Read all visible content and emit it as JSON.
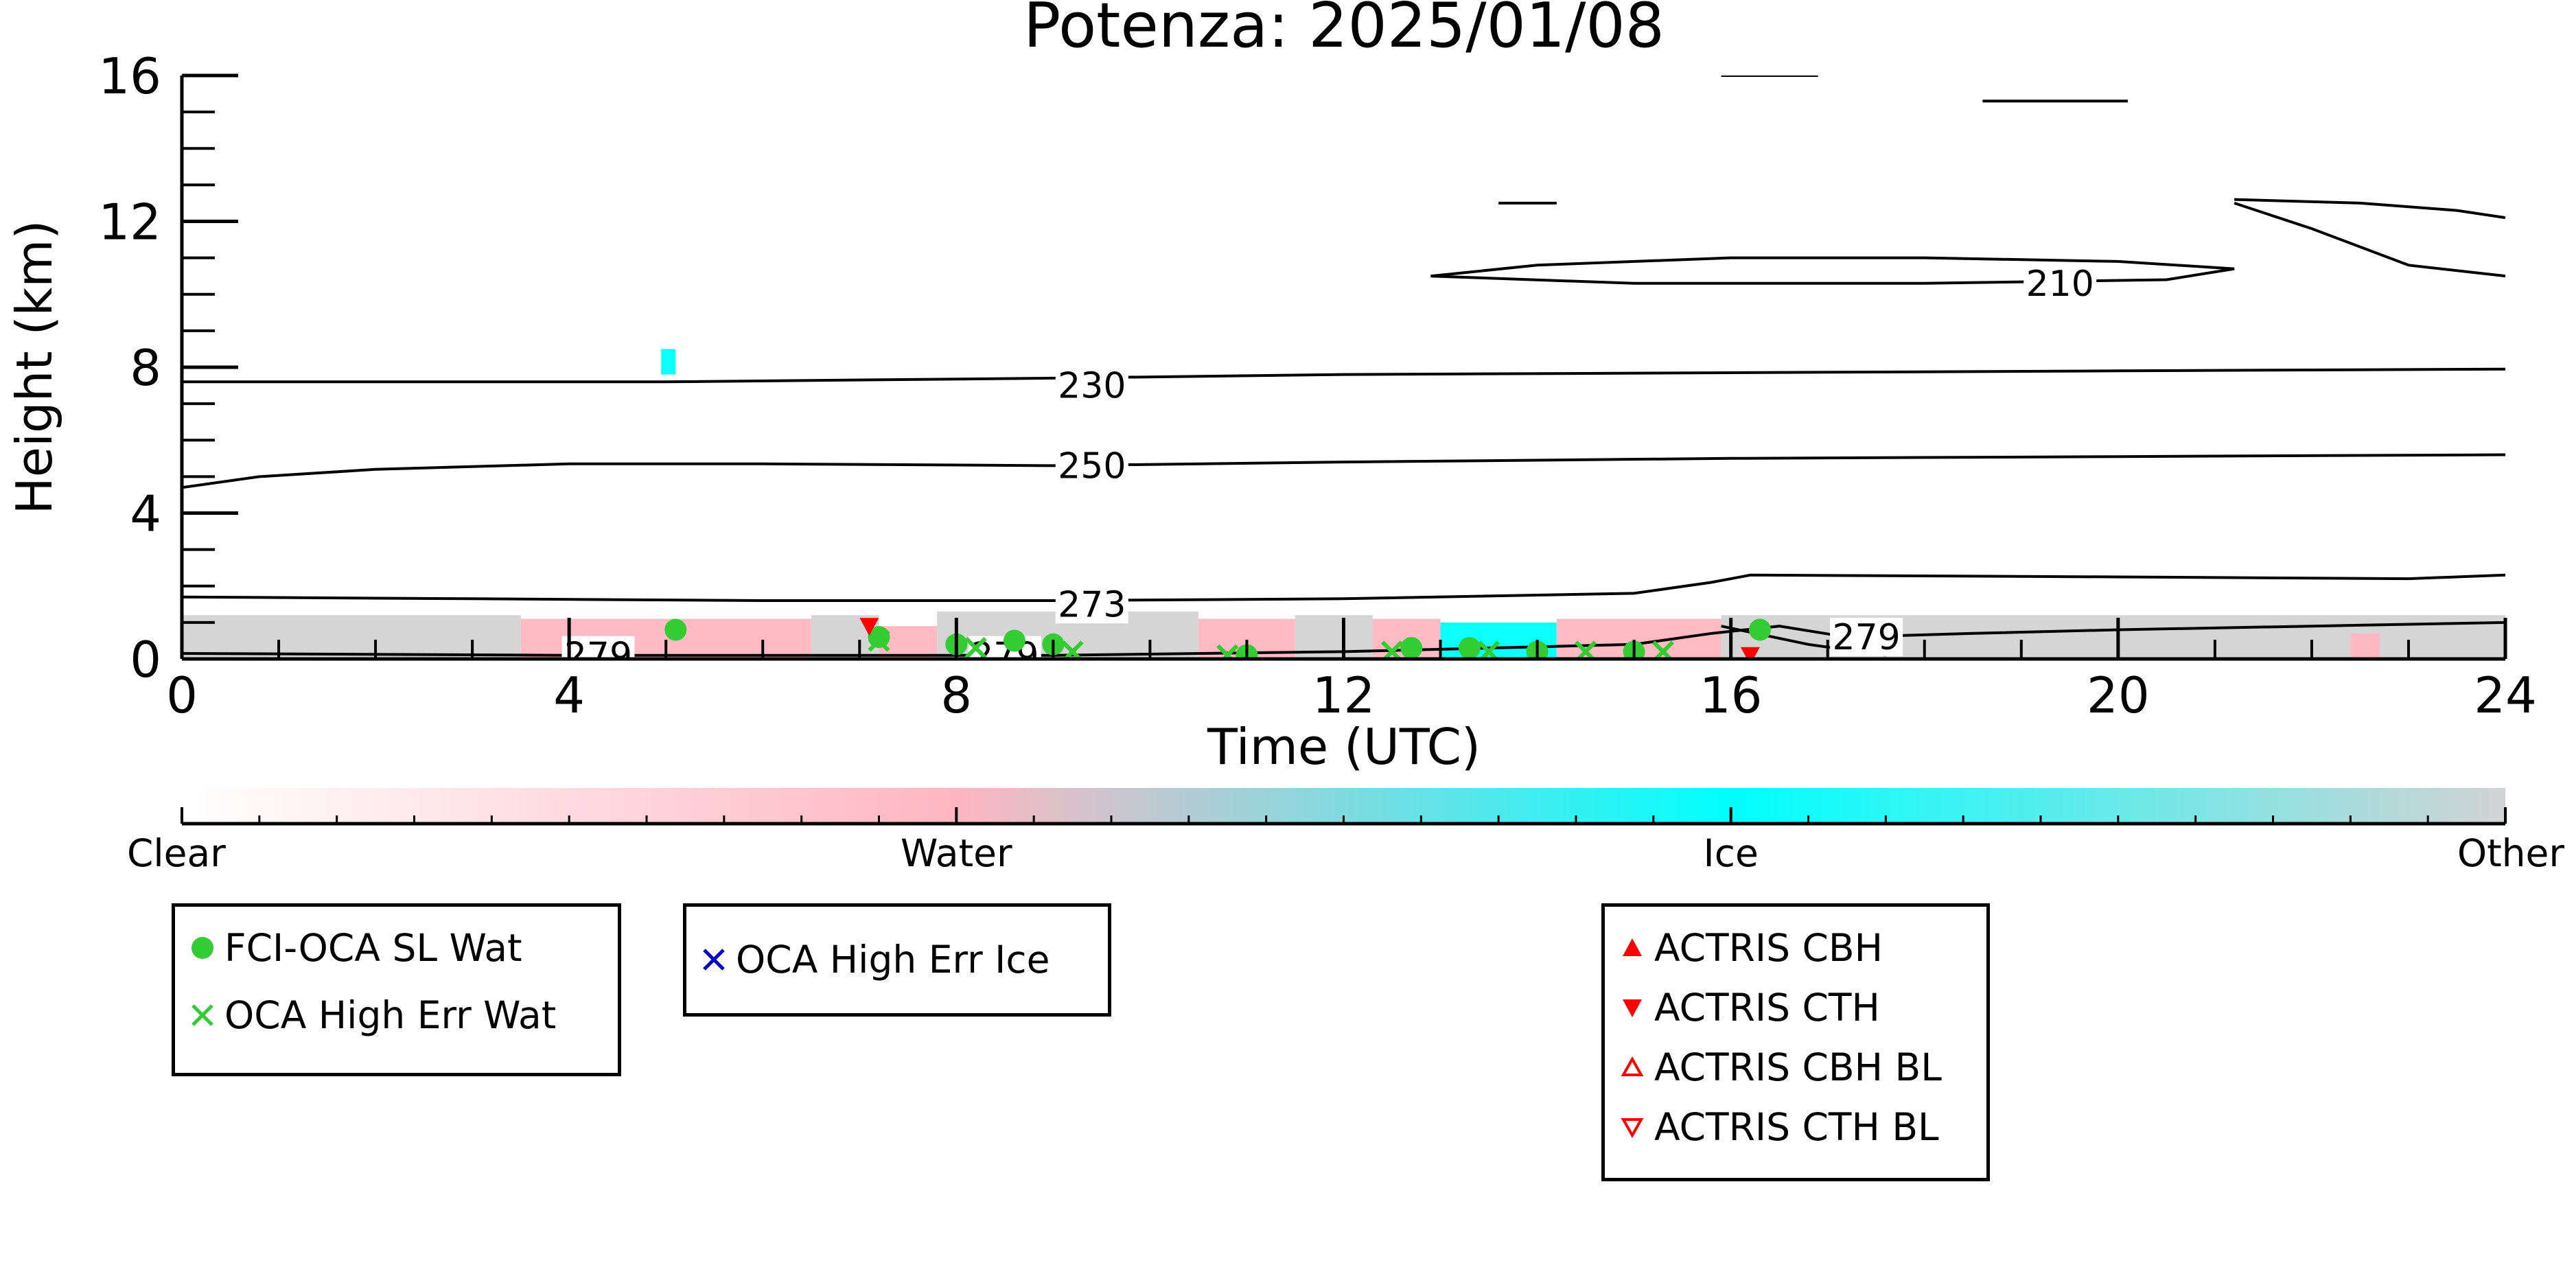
{
  "chart_data": {
    "type": "heatmap",
    "title": "Potenza: 2025/01/08",
    "xlabel": "Time (UTC)",
    "ylabel": "Height (km)",
    "xlim": [
      0,
      24
    ],
    "ylim": [
      0,
      16
    ],
    "x_ticks": [
      "0",
      "4",
      "8",
      "12",
      "16",
      "20",
      "24"
    ],
    "y_ticks": [
      "0",
      "4",
      "8",
      "12",
      "16"
    ],
    "contour_labels": [
      {
        "text": "210",
        "x": 19.4,
        "y": 10.3
      },
      {
        "text": "230",
        "x": 9.4,
        "y": 7.5
      },
      {
        "text": "250",
        "x": 9.4,
        "y": 5.3
      },
      {
        "text": "273",
        "x": 9.4,
        "y": 1.5
      },
      {
        "text": "279",
        "x": 17.4,
        "y": 0.6
      },
      {
        "text": "279",
        "x": 8.5,
        "y": 0.1
      },
      {
        "text": "279",
        "x": 4.3,
        "y": 0.1
      }
    ],
    "contours": [
      {
        "level": "210",
        "points": [
          [
            12.9,
            10.5
          ],
          [
            14,
            10.8
          ],
          [
            16,
            11.0
          ],
          [
            18,
            11.0
          ],
          [
            20,
            10.9
          ],
          [
            21.2,
            10.7
          ],
          [
            20.5,
            10.4
          ],
          [
            18,
            10.3
          ],
          [
            15,
            10.3
          ],
          [
            12.9,
            10.5
          ]
        ]
      },
      {
        "level": "230",
        "points": [
          [
            0,
            7.6
          ],
          [
            3,
            7.6
          ],
          [
            5,
            7.6
          ],
          [
            9,
            7.7
          ],
          [
            12,
            7.8
          ],
          [
            16,
            7.85
          ],
          [
            20,
            7.9
          ],
          [
            24,
            7.95
          ]
        ]
      },
      {
        "level": "250",
        "points": [
          [
            0,
            4.7
          ],
          [
            0.8,
            5.0
          ],
          [
            2,
            5.2
          ],
          [
            4,
            5.35
          ],
          [
            6,
            5.35
          ],
          [
            9,
            5.3
          ],
          [
            12,
            5.4
          ],
          [
            16,
            5.5
          ],
          [
            20,
            5.55
          ],
          [
            24,
            5.6
          ]
        ]
      },
      {
        "level": "273",
        "points": [
          [
            0,
            1.7
          ],
          [
            3,
            1.65
          ],
          [
            6,
            1.6
          ],
          [
            9,
            1.6
          ],
          [
            12,
            1.65
          ],
          [
            15,
            1.8
          ],
          [
            15.8,
            2.1
          ],
          [
            16.2,
            2.3
          ],
          [
            20,
            2.25
          ],
          [
            23,
            2.2
          ],
          [
            24,
            2.3
          ]
        ]
      },
      {
        "level": "279",
        "points": [
          [
            0,
            0.15
          ],
          [
            4,
            0.1
          ],
          [
            8,
            0.1
          ],
          [
            9,
            0.1
          ],
          [
            12,
            0.2
          ],
          [
            15,
            0.4
          ],
          [
            15.8,
            0.7
          ],
          [
            16.5,
            0.9
          ],
          [
            17.2,
            0.6
          ],
          [
            18.5,
            0.7
          ],
          [
            20,
            0.8
          ],
          [
            22,
            0.9
          ],
          [
            24,
            1.0
          ]
        ]
      },
      {
        "level": "279b",
        "points": [
          [
            15.9,
            0.9
          ],
          [
            16.8,
            0.4
          ],
          [
            17.6,
            0.1
          ]
        ]
      },
      {
        "level": "cap1",
        "points": [
          [
            13.6,
            12.5
          ],
          [
            14.2,
            12.5
          ]
        ]
      },
      {
        "level": "cap2",
        "points": [
          [
            18.6,
            15.3
          ],
          [
            20.1,
            15.3
          ]
        ]
      },
      {
        "level": "cap3",
        "points": [
          [
            15.9,
            16
          ],
          [
            16.9,
            16
          ]
        ]
      },
      {
        "level": "cap4",
        "points": [
          [
            21.2,
            12.6
          ],
          [
            22.5,
            12.5
          ],
          [
            23.5,
            12.3
          ],
          [
            24,
            12.1
          ]
        ]
      },
      {
        "level": "cap5",
        "points": [
          [
            21.2,
            12.5
          ],
          [
            22,
            11.8
          ],
          [
            23,
            10.8
          ],
          [
            24,
            10.5
          ]
        ]
      }
    ],
    "classification_segments": [
      {
        "class": "Other",
        "x0": 0,
        "x1": 3.5,
        "ymax": 1.2
      },
      {
        "class": "Water",
        "x0": 3.5,
        "x1": 6.5,
        "ymax": 1.1
      },
      {
        "class": "Other",
        "x0": 6.5,
        "x1": 7.2,
        "ymax": 1.2
      },
      {
        "class": "Water",
        "x0": 7.2,
        "x1": 7.8,
        "ymax": 0.9
      },
      {
        "class": "Other",
        "x0": 7.8,
        "x1": 10.5,
        "ymax": 1.3
      },
      {
        "class": "Water",
        "x0": 10.5,
        "x1": 11.5,
        "ymax": 1.1
      },
      {
        "class": "Other",
        "x0": 11.5,
        "x1": 12.3,
        "ymax": 1.2
      },
      {
        "class": "Water",
        "x0": 12.3,
        "x1": 13.0,
        "ymax": 1.1
      },
      {
        "class": "Ice",
        "x0": 13.0,
        "x1": 14.2,
        "ymax": 1.0
      },
      {
        "class": "Water",
        "x0": 14.2,
        "x1": 15.9,
        "ymax": 1.1
      },
      {
        "class": "Other",
        "x0": 15.9,
        "x1": 24,
        "ymax": 1.2
      },
      {
        "class": "Water",
        "x0": 22.4,
        "x1": 22.7,
        "ymax": 0.7
      },
      {
        "class": "Ice",
        "x0": 4.95,
        "x1": 5.1,
        "ymax": 8.5,
        "ymin": 7.8
      }
    ],
    "colorbar": {
      "labels": [
        "Clear",
        "Water",
        "Ice",
        "Other"
      ],
      "colors": [
        "#ffffff",
        "#ffb6c1",
        "#00ffff",
        "#d3d3d3"
      ]
    },
    "markers": {
      "fci_oca_sl_wat": [
        [
          5.1,
          0.8
        ],
        [
          7.2,
          0.6
        ],
        [
          8.0,
          0.4
        ],
        [
          8.6,
          0.5
        ],
        [
          9.0,
          0.4
        ],
        [
          11.0,
          0.1
        ],
        [
          12.7,
          0.3
        ],
        [
          13.3,
          0.3
        ],
        [
          14.0,
          0.2
        ],
        [
          15.0,
          0.2
        ],
        [
          16.3,
          0.8
        ]
      ],
      "oca_high_err_wat": [
        [
          7.2,
          0.5
        ],
        [
          8.2,
          0.3
        ],
        [
          9.2,
          0.2
        ],
        [
          10.8,
          0.1
        ],
        [
          12.5,
          0.2
        ],
        [
          13.5,
          0.2
        ],
        [
          14.5,
          0.2
        ],
        [
          15.3,
          0.2
        ]
      ],
      "actris_cth": [
        [
          7.1,
          0.9
        ],
        [
          16.2,
          0.1
        ]
      ]
    },
    "legends": [
      {
        "entries": [
          {
            "label": "FCI-OCA SL Wat",
            "marker": "circle",
            "color": "#33cc33"
          },
          {
            "label": "OCA High Err Wat",
            "marker": "x",
            "color": "#33cc33"
          }
        ]
      },
      {
        "entries": [
          {
            "label": "OCA High Err Ice",
            "marker": "x",
            "color": "#0000cc"
          }
        ]
      },
      {
        "entries": [
          {
            "label": "ACTRIS CBH",
            "marker": "triangle-up",
            "color": "#ff0000"
          },
          {
            "label": "ACTRIS CTH",
            "marker": "triangle-down",
            "color": "#ff0000"
          },
          {
            "label": "ACTRIS CBH BL",
            "marker": "triangle-up-open",
            "color": "#ff0000"
          },
          {
            "label": "ACTRIS CTH BL",
            "marker": "triangle-down-open",
            "color": "#ff0000"
          }
        ]
      }
    ]
  }
}
